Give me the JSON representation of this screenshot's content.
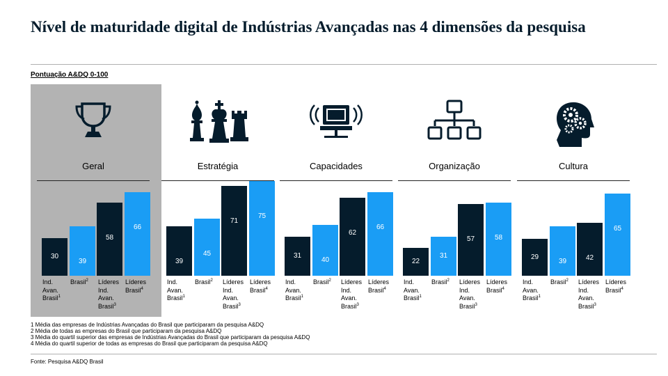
{
  "title": "Nível de maturidade digital de Indústrias Avançadas nas 4 dimensões da pesquisa",
  "subtitle": "Pontuação A&DQ 0-100",
  "colors": {
    "navy": "#051c2c",
    "blue": "#1a9df5",
    "highlight_bg": "#b3b3b3"
  },
  "chart_data": {
    "type": "bar",
    "ylim": [
      0,
      100
    ],
    "categories": [
      "Ind. Avan. Brasil",
      "Brasil",
      "Líderes Ind. Avan. Brasil",
      "Líderes Brasil"
    ],
    "category_superscripts": [
      "1",
      "2",
      "3",
      "4"
    ],
    "series_colors": [
      "#051c2c",
      "#1a9df5",
      "#051c2c",
      "#1a9df5"
    ],
    "panels": [
      {
        "name": "Geral",
        "icon": "trophy-icon",
        "highlighted": true,
        "values": [
          30,
          39,
          58,
          66
        ]
      },
      {
        "name": "Estratégia",
        "icon": "chess-pieces-icon",
        "highlighted": false,
        "values": [
          39,
          45,
          71,
          75
        ]
      },
      {
        "name": "Capacidades",
        "icon": "computer-icon",
        "highlighted": false,
        "values": [
          31,
          40,
          62,
          66
        ]
      },
      {
        "name": "Organização",
        "icon": "org-chart-icon",
        "highlighted": false,
        "values": [
          22,
          31,
          57,
          58
        ]
      },
      {
        "name": "Cultura",
        "icon": "head-gears-icon",
        "highlighted": false,
        "values": [
          29,
          39,
          42,
          65
        ]
      }
    ]
  },
  "label_lines": [
    [
      "Ind.",
      "Avan.",
      "Brasil"
    ],
    [
      "Brasil"
    ],
    [
      "Líderes",
      "Ind.",
      "Avan.",
      "Brasil"
    ],
    [
      "Líderes",
      "Brasil"
    ]
  ],
  "footnotes": [
    "1 Média das empresas de Indústrias Avançadas do Brasil que participaram da pesquisa A&DQ",
    "2 Média de todas as empresas do Brasil que participaram da pesquisa A&DQ",
    "3 Média do quartil superior das empresas de Indústrias Avançadas do Brasil que participaram da pesquisa A&DQ",
    "4 Média do quartil superior de todas as empresas do Brasil que participaram da pesquisa A&DQ"
  ],
  "source": "Fonte: Pesquisa A&DQ Brasil"
}
